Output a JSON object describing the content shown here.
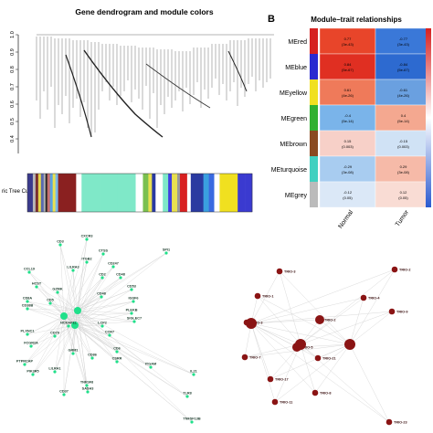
{
  "panel_a": {
    "title": "Gene dendrogram and module colors",
    "y_ticks": [
      "1.0",
      "0.9",
      "0.8",
      "0.7",
      "0.6",
      "0.5",
      "0.4"
    ],
    "color_bar_label": "ric Tree Cut",
    "color_bar": [
      "#3a3a8c",
      "#b8b8b8",
      "#7a3030",
      "#e6d84a",
      "#5a6ab0",
      "#b0b0b0",
      "#2a2a2a",
      "#c97070",
      "#5aa0e0",
      "#e8e050",
      "#7ab8e8",
      "#8a2020",
      "#8a2020",
      "#ffffff",
      "#7fe8c8",
      "#7fe8c8",
      "#7fe8c8",
      "#ffffff",
      "#7ac050",
      "#e8e050",
      "#2a3aa0",
      "#ffffff",
      "#7fe8c8",
      "#4040e0",
      "#e8e050",
      "#9a9a9a",
      "#d82020",
      "#ffffff",
      "#2a3aa0",
      "#3aa0e0",
      "#3a6ae0",
      "#ffffff",
      "#f0e020",
      "#f0e020",
      "#3a3ad0",
      "#3a3ad0"
    ]
  },
  "panel_b": {
    "letter": "B",
    "title": "Module–trait relationships",
    "modules": [
      "MEred",
      "MEblue",
      "MEyellow",
      "MEgreen",
      "MEbrown",
      "MEturquoise",
      "MEgrey"
    ],
    "module_colors": [
      "#d62020",
      "#2a2ad0",
      "#f0e020",
      "#30b030",
      "#8a4a20",
      "#40d0c0",
      "#bbbbbb"
    ],
    "traits": [
      "Normal",
      "Tumor"
    ],
    "cells": [
      [
        {
          "text": "0.77\n(3e-43)",
          "color": "#e8452a"
        },
        {
          "text": "-0.77\n(3e-43)",
          "color": "#3a78d8"
        }
      ],
      [
        {
          "text": "0.84\n(5e-67)",
          "color": "#e02f22"
        },
        {
          "text": "-0.84\n(5e-67)",
          "color": "#2d6ad0"
        }
      ],
      [
        {
          "text": "0.61\n(4e-26)",
          "color": "#ef7a5a"
        },
        {
          "text": "-0.61\n(4e-26)",
          "color": "#6aa0e0"
        }
      ],
      [
        {
          "text": "-0.4\n(5e-14)",
          "color": "#7ab4ea"
        },
        {
          "text": "0.4\n(5e-14)",
          "color": "#f4a890"
        }
      ],
      [
        {
          "text": "0.15\n(0.003)",
          "color": "#f7d0c8"
        },
        {
          "text": "-0.15\n(0.003)",
          "color": "#d0e2f5"
        }
      ],
      [
        {
          "text": "-0.29\n(3e-08)",
          "color": "#a8ccf0"
        },
        {
          "text": "0.29\n(3e-08)",
          "color": "#f6baa8"
        }
      ],
      [
        {
          "text": "-0.12\n(0.05)",
          "color": "#dbe8f7"
        },
        {
          "text": "0.12\n(0.05)",
          "color": "#f9dcd4"
        }
      ]
    ],
    "legend_ticks": [
      "1",
      "0.5",
      "0",
      "-0.5",
      "-1"
    ]
  },
  "network_left": {
    "node_color": "#1fe08a",
    "labels": [
      "CXCR3",
      "SPI1",
      "CD3",
      "CTSS",
      "ITGB2",
      "CD247",
      "CCL19",
      "LILRA3",
      "CD48",
      "CD2",
      "HCST",
      "GZMK",
      "CD53",
      "CD8A",
      "CD48",
      "IGSF6",
      "CD5",
      "CD38B",
      "PLEKB",
      "SIGLEC7",
      "CD79",
      "CCR7",
      "NCKAP1L",
      "LCP2",
      "PLXNC1",
      "FCGR2A",
      "CD6",
      "GRM1",
      "PTPRCAP",
      "PIK3R5",
      "CD86",
      "CSRR",
      "LILRA1",
      "TNFSF8",
      "ITGAM",
      "CD37",
      "SASH3",
      "IL21",
      "TLR8",
      "TNFSF13B"
    ]
  },
  "network_right": {
    "node_color": "#8a1414",
    "labels": [
      "TRIO-3",
      "TRIO-2",
      "TRIO-1",
      "TRIO-4",
      "TRIO-3",
      "TRIO-2",
      "TRIO-5",
      "TRIO-7",
      "TRIO-21",
      "TRIO-17",
      "TRIO-11",
      "TRIO-8",
      "TRIO-9",
      "TRIO-23"
    ]
  }
}
